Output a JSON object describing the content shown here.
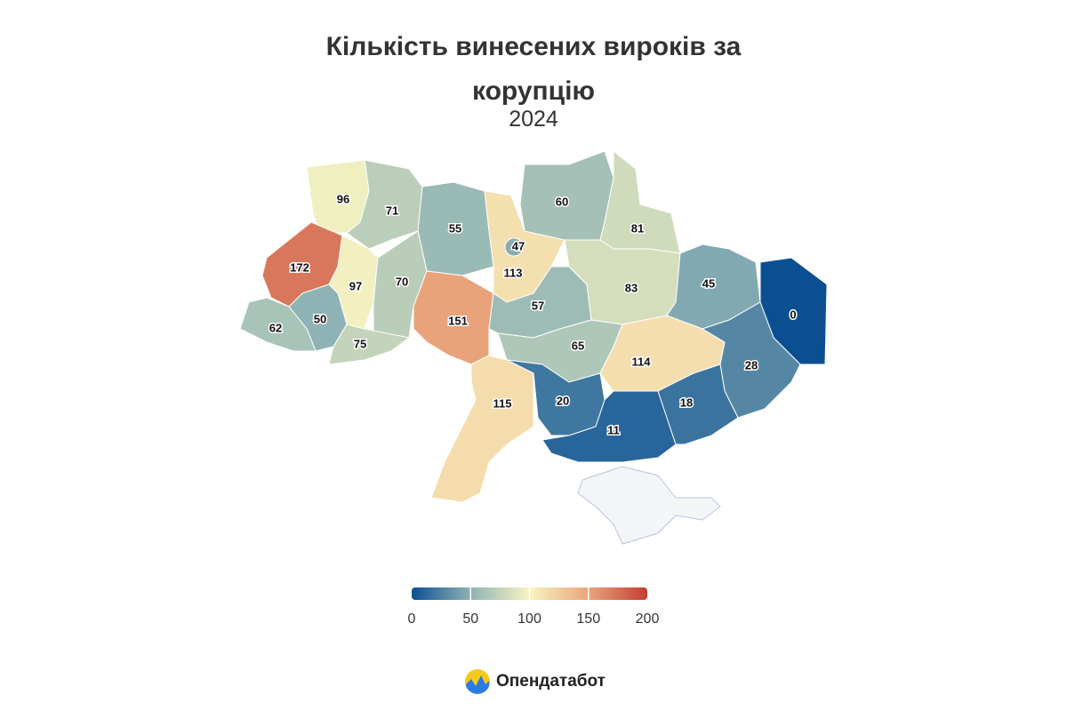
{
  "chart_data": {
    "type": "choropleth",
    "title": "Кількість винесених вироків за корупцію",
    "subtitle": "2024",
    "values": [
      96,
      71,
      55,
      113,
      47,
      60,
      81,
      172,
      97,
      70,
      50,
      62,
      75,
      151,
      57,
      83,
      45,
      0,
      115,
      65,
      114,
      28,
      20,
      11,
      18
    ],
    "colors": [
      "#0b4f93",
      "#8fb3b4",
      "#f8f4c1",
      "#e9a57c",
      "#c53c33"
    ],
    "clim": [
      0,
      200
    ],
    "cticks": [
      0,
      50,
      100,
      150,
      200
    ]
  },
  "brand": "Опендатабот"
}
